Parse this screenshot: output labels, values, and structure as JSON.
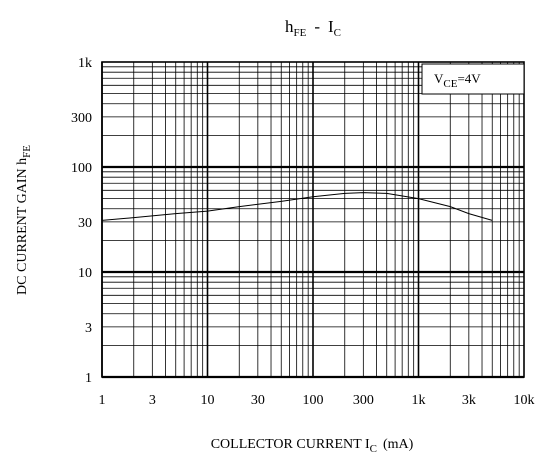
{
  "chart_data": {
    "type": "line",
    "title": {
      "main": "h",
      "main_sub": "FE",
      "sep": "-",
      "second": "I",
      "second_sub": "C"
    },
    "xlabel": {
      "text": "COLLECTOR CURRENT I",
      "sub": "C",
      "unit": "(mA)"
    },
    "ylabel": {
      "text": "DC CURRENT GAIN h",
      "sub": "FE"
    },
    "annotation": {
      "main": "V",
      "sub": "CE",
      "rest": "=4V"
    },
    "x_scale": "log",
    "y_scale": "log",
    "xlim": [
      1,
      10000
    ],
    "ylim": [
      1,
      1000
    ],
    "x_ticks": [
      {
        "value": 1,
        "label": "1"
      },
      {
        "value": 3,
        "label": "3"
      },
      {
        "value": 10,
        "label": "10"
      },
      {
        "value": 30,
        "label": "30"
      },
      {
        "value": 100,
        "label": "100"
      },
      {
        "value": 300,
        "label": "300"
      },
      {
        "value": 1000,
        "label": "1k"
      },
      {
        "value": 3000,
        "label": "3k"
      },
      {
        "value": 10000,
        "label": "10k"
      }
    ],
    "y_ticks": [
      {
        "value": 1,
        "label": "1"
      },
      {
        "value": 3,
        "label": "3"
      },
      {
        "value": 10,
        "label": "10"
      },
      {
        "value": 30,
        "label": "30"
      },
      {
        "value": 100,
        "label": "100"
      },
      {
        "value": 300,
        "label": "300"
      },
      {
        "value": 1000,
        "label": "1k"
      }
    ],
    "grid": true,
    "series": [
      {
        "x": [
          1,
          2,
          5,
          10,
          20,
          50,
          100,
          200,
          300,
          500,
          1000,
          2000,
          3000,
          5000
        ],
        "y": [
          31,
          33,
          36,
          38,
          42,
          47,
          52,
          56,
          57,
          56,
          50,
          42,
          36,
          31
        ]
      }
    ]
  }
}
